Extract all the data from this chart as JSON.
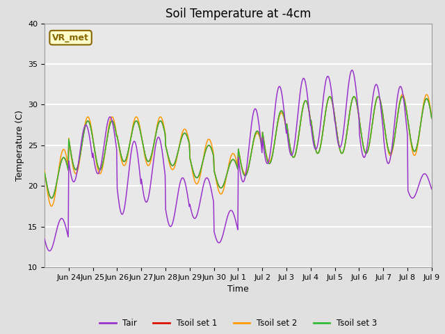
{
  "title": "Soil Temperature at -4cm",
  "xlabel": "Time",
  "ylabel": "Temperature (C)",
  "ylim": [
    10,
    40
  ],
  "bg_color": "#e0e0e0",
  "plot_bg_color": "#e8e8e8",
  "grid_color": "white",
  "colors": {
    "Tair": "#9933cc",
    "Tsoil_set1": "#dd1100",
    "Tsoil_set2": "#ff9900",
    "Tsoil_set3": "#33bb33"
  },
  "legend_labels": [
    "Tair",
    "Tsoil set 1",
    "Tsoil set 2",
    "Tsoil set 3"
  ],
  "annotation_text": "VR_met",
  "annotation_bg": "#ffffcc",
  "annotation_border": "#886600",
  "x_tick_labels": [
    "Jun 24",
    "Jun 25",
    "Jun 26",
    "Jun 27",
    "Jun 28",
    "Jun 29",
    "Jun 30",
    "Jul 1",
    "Jul 2",
    "Jul 3",
    "Jul 4",
    "Jul 5",
    "Jul 6",
    "Jul 7",
    "Jul 8",
    "Jul 9"
  ],
  "title_fontsize": 12,
  "label_fontsize": 9,
  "tick_fontsize": 8
}
